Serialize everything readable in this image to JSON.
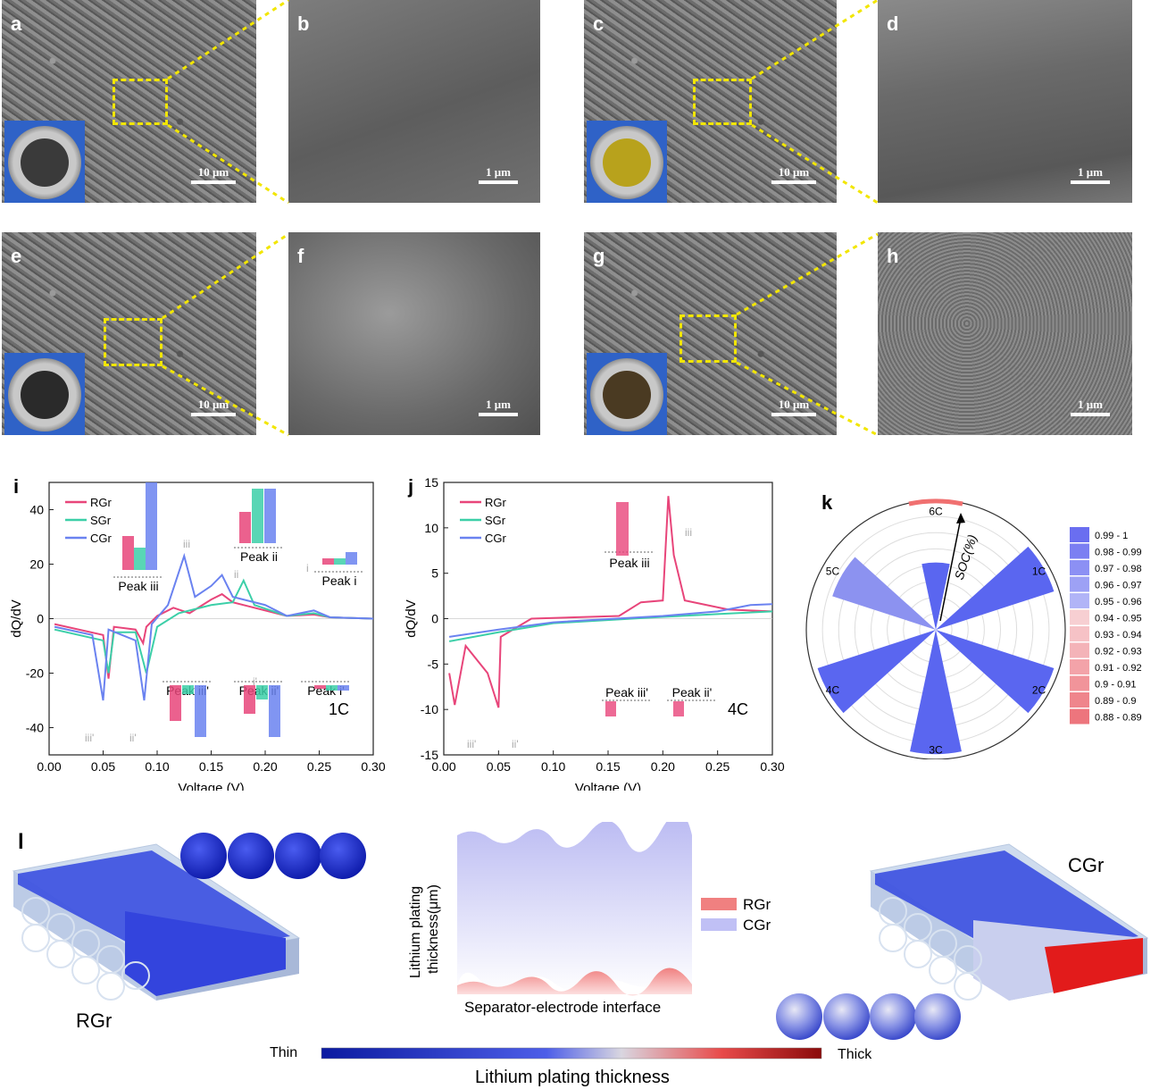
{
  "sem": {
    "panels": [
      {
        "label": "a",
        "scale": "10 μm"
      },
      {
        "label": "b",
        "scale": "1 μm"
      },
      {
        "label": "c",
        "scale": "10 μm"
      },
      {
        "label": "d",
        "scale": "1 μm"
      },
      {
        "label": "e",
        "scale": "10 μm"
      },
      {
        "label": "f",
        "scale": "1 μm"
      },
      {
        "label": "g",
        "scale": "10 μm"
      },
      {
        "label": "h",
        "scale": "1 μm"
      }
    ],
    "inset_disc_colors": [
      "#3a3a3a",
      "#b8a21c",
      "#2a2a2a",
      "#4a3a22"
    ],
    "highlight_color": "#f2e600"
  },
  "panel_i": {
    "label": "i",
    "rate": "1C",
    "xlabel": "Voltage (V)",
    "ylabel": "dQ/dV",
    "xticks": [
      "0.00",
      "0.05",
      "0.10",
      "0.15",
      "0.20",
      "0.25",
      "0.30"
    ],
    "yticks": [
      "40",
      "20",
      "0",
      "-20",
      "-40"
    ],
    "legend": [
      "RGr",
      "SGr",
      "CGr"
    ],
    "peak_labels": [
      "Peak iii",
      "Peak ii",
      "Peak i",
      "Peak iii'",
      "Peak ii'",
      "Peak i'"
    ],
    "peak_marks": [
      "iii",
      "ii",
      "i",
      "iii'",
      "ii'",
      "i'"
    ]
  },
  "panel_j": {
    "label": "j",
    "rate": "4C",
    "xlabel": "Voltage (V)",
    "ylabel": "dQ/dV",
    "xticks": [
      "0.00",
      "0.05",
      "0.10",
      "0.15",
      "0.20",
      "0.25",
      "0.30"
    ],
    "yticks": [
      "15",
      "10",
      "5",
      "0",
      "-5",
      "-10",
      "-15"
    ],
    "legend": [
      "RGr",
      "SGr",
      "CGr"
    ],
    "peak_labels": [
      "Peak iii",
      "Peak iii'",
      "Peak ii'"
    ],
    "peak_marks": [
      "iii",
      "iii'",
      "ii'"
    ]
  },
  "panel_k": {
    "label": "k",
    "axis_label": "SOC(%)",
    "rates": [
      "6C",
      "1C",
      "2C",
      "3C",
      "4C",
      "5C"
    ],
    "legend": [
      "0.99 - 1",
      "0.98 - 0.99",
      "0.97 - 0.98",
      "0.96 - 0.97",
      "0.95 - 0.96",
      "0.94 - 0.95",
      "0.93 - 0.94",
      "0.92 - 0.93",
      "0.91 - 0.92",
      "0.9 - 0.91",
      "0.89 - 0.9",
      "0.88 - 0.89"
    ]
  },
  "panel_l": {
    "label": "l",
    "left_name": "RGr",
    "right_name": "CGr",
    "middle_ylabel_1": "Lithium plating",
    "middle_ylabel_2": "thickness(μm)",
    "middle_xlabel": "Separator-electrode interface",
    "middle_legend": [
      "RGr",
      "CGr"
    ],
    "colorbar_min": "Thin",
    "colorbar_max": "Thick",
    "colorbar_title": "Lithium plating thickness"
  },
  "chart_data": [
    {
      "type": "line",
      "panel": "i",
      "title": "",
      "xlabel": "Voltage (V)",
      "ylabel": "dQ/dV",
      "xlim": [
        0,
        0.3
      ],
      "ylim": [
        -50,
        50
      ],
      "annotation": "1C",
      "series": [
        {
          "name": "RGr",
          "x": [
            0.005,
            0.05,
            0.055,
            0.06,
            0.08,
            0.087,
            0.09,
            0.1,
            0.115,
            0.13,
            0.15,
            0.16,
            0.17,
            0.19,
            0.22,
            0.245,
            0.26,
            0.3
          ],
          "y": [
            -2,
            -6,
            -22,
            -3,
            -4,
            -9,
            -3,
            1,
            4,
            2,
            7,
            9,
            6,
            4,
            1,
            1.5,
            0.5,
            0
          ]
        },
        {
          "name": "SGr",
          "x": [
            0.005,
            0.05,
            0.055,
            0.06,
            0.08,
            0.09,
            0.1,
            0.12,
            0.15,
            0.17,
            0.18,
            0.19,
            0.22,
            0.245,
            0.26,
            0.3
          ],
          "y": [
            -4,
            -8,
            -20,
            -5,
            -5,
            -20,
            -3,
            2,
            5,
            6,
            14,
            5,
            1,
            2,
            0.5,
            0
          ]
        },
        {
          "name": "CGr",
          "x": [
            0.005,
            0.04,
            0.05,
            0.055,
            0.08,
            0.088,
            0.095,
            0.11,
            0.125,
            0.135,
            0.15,
            0.16,
            0.17,
            0.2,
            0.22,
            0.245,
            0.26,
            0.3
          ],
          "y": [
            -3,
            -6,
            -30,
            -4,
            -8,
            -30,
            -2,
            5,
            23,
            8,
            12,
            16,
            8,
            5,
            1,
            3,
            0.5,
            0
          ]
        }
      ]
    },
    {
      "type": "line",
      "panel": "j",
      "title": "",
      "xlabel": "Voltage (V)",
      "ylabel": "dQ/dV",
      "xlim": [
        0,
        0.3
      ],
      "ylim": [
        -15,
        15
      ],
      "annotation": "4C",
      "series": [
        {
          "name": "RGr",
          "x": [
            0.005,
            0.01,
            0.02,
            0.04,
            0.05,
            0.052,
            0.08,
            0.16,
            0.18,
            0.2,
            0.205,
            0.21,
            0.22,
            0.26,
            0.3
          ],
          "y": [
            -6,
            -9.5,
            -3,
            -6,
            -9.8,
            -2,
            0,
            0.3,
            1.8,
            2,
            13.5,
            7,
            2,
            1,
            0.8
          ]
        },
        {
          "name": "SGr",
          "x": [
            0.005,
            0.05,
            0.1,
            0.2,
            0.25,
            0.3
          ],
          "y": [
            -2.5,
            -1.5,
            -0.5,
            0.2,
            0.5,
            0.8
          ]
        },
        {
          "name": "CGr",
          "x": [
            0.005,
            0.05,
            0.1,
            0.2,
            0.25,
            0.28,
            0.3
          ],
          "y": [
            -2,
            -1.2,
            -0.4,
            0.3,
            0.8,
            1.5,
            1.6
          ]
        }
      ]
    },
    {
      "type": "bar",
      "panel": "k",
      "title": "",
      "categories": [
        "1C",
        "2C",
        "3C",
        "4C",
        "5C",
        "6C"
      ],
      "values": [
        0.99,
        0.99,
        0.99,
        0.99,
        0.96,
        0.88
      ]
    }
  ]
}
